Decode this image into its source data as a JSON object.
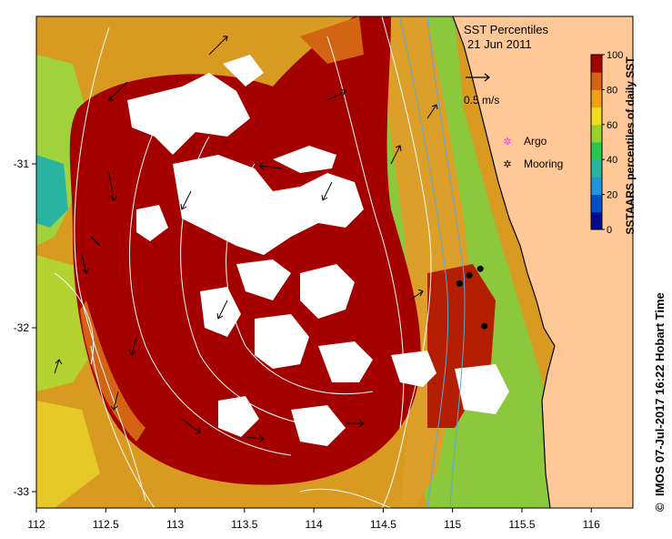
{
  "map": {
    "title": "SST Percentiles",
    "date": "21 Jun 2011",
    "x_ticks": [
      "112",
      "112.5",
      "113",
      "113.5",
      "114",
      "114.5",
      "115",
      "115.5",
      "116"
    ],
    "y_ticks": [
      "-31",
      "-32",
      "-33"
    ],
    "lon_range": [
      112,
      116.3
    ],
    "lat_range": [
      -33.1,
      -30.1
    ],
    "land_color": "#ffc896",
    "vector_scale_label": "0.5 m/s",
    "legend_argo": "Argo",
    "legend_mooring": "Mooring",
    "argo_color": "#ff33ff",
    "mooring_color": "#000000",
    "credit": "IMOS 07-Jul-2017 16:22 Hobart Time",
    "copyright_symbol": "©"
  },
  "colorbar": {
    "label": "SSTAARS percentiles of daily SST",
    "ticks": [
      "0",
      "20",
      "40",
      "60",
      "80",
      "100"
    ],
    "colors": [
      "#000a8c",
      "#0050c8",
      "#1e96dc",
      "#28b4a0",
      "#28c850",
      "#96d228",
      "#f0dc1e",
      "#f0a014",
      "#d26414",
      "#a50000"
    ]
  },
  "moorings": [
    {
      "lon": 115.05,
      "lat": -31.73
    },
    {
      "lon": 115.12,
      "lat": -31.68
    },
    {
      "lon": 115.2,
      "lat": -31.64
    },
    {
      "lon": 115.23,
      "lat": -31.99
    }
  ]
}
